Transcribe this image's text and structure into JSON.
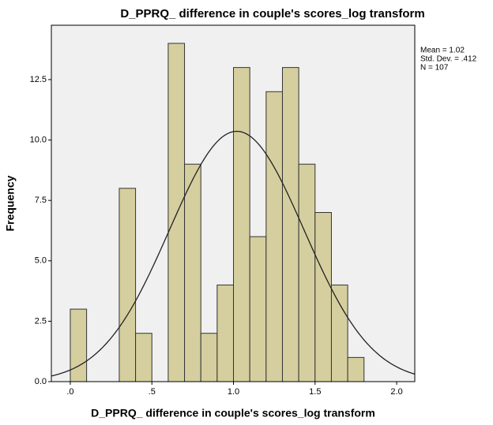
{
  "chart_data": {
    "type": "histogram",
    "title": "D_PPRQ_ difference in couple's scores_log transform",
    "x_label": "D_PPRQ_ difference in couple's scores_log transform",
    "y_label": "Frequency",
    "bins": [
      0.0,
      0.1,
      0.2,
      0.3,
      0.4,
      0.5,
      0.6,
      0.7,
      0.8,
      0.9,
      1.0,
      1.1,
      1.2,
      1.3,
      1.4,
      1.5,
      1.6,
      1.7,
      1.8
    ],
    "values": [
      3,
      0,
      0,
      8,
      2,
      0,
      14,
      9,
      2,
      4,
      13,
      6,
      12,
      13,
      9,
      7,
      4,
      1
    ],
    "color": "#d5cf9f",
    "xlim": [
      -0.116,
      2.111
    ],
    "ylim": [
      0,
      14.75
    ],
    "xticks": [
      {
        "value": 0,
        "label": ".0"
      },
      {
        "value": 0.5,
        "label": ".5"
      },
      {
        "value": 1,
        "label": "1.0"
      },
      {
        "value": 1.5,
        "label": "1.5"
      },
      {
        "value": 2,
        "label": "2.0"
      }
    ],
    "yticks": [
      {
        "value": 0,
        "label": "0.0"
      },
      2.5,
      {
        "value": 5,
        "label": "5.0"
      },
      7.5,
      {
        "value": 10,
        "label": "10.0"
      },
      12.5
    ],
    "stats": [
      {
        "label": "Mean = 1.02",
        "value": 1.02
      },
      {
        "label": "Std. Dev. = .412",
        "value": 0.412
      },
      {
        "label": "N = 107",
        "value": 107
      }
    ]
  }
}
